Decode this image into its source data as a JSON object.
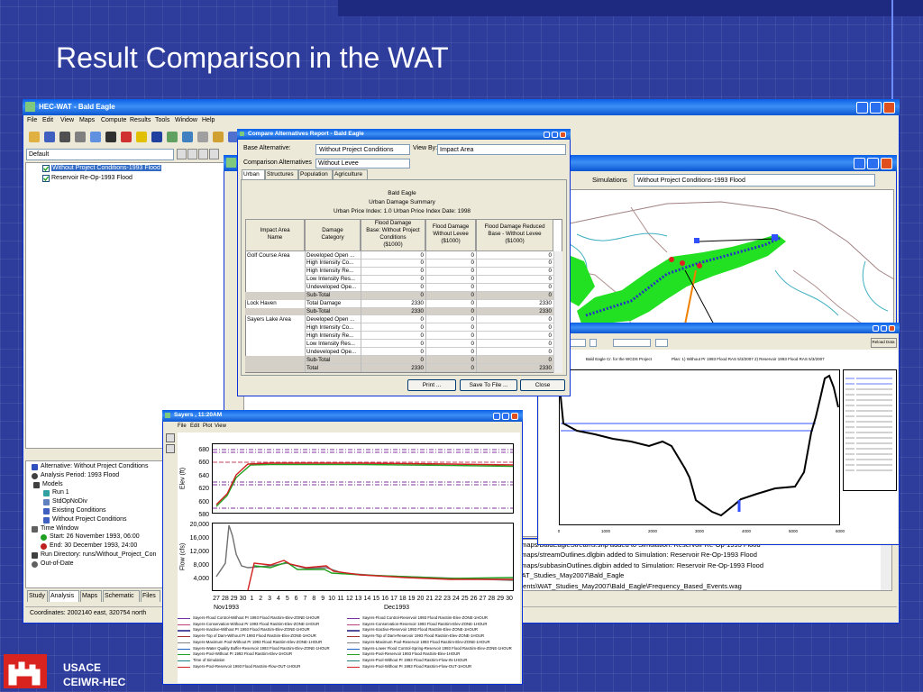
{
  "slide": {
    "title": "Result Comparison in the WAT",
    "org": "USACE",
    "office": "CEIWR-HEC"
  },
  "main_window": {
    "title": "HEC-WAT - Bald Eagle",
    "menu": [
      "File",
      "Edit",
      "View",
      "Maps",
      "Compute",
      "Results",
      "Tools",
      "Window",
      "Help"
    ],
    "dropdown": "Default",
    "tree": [
      "Without Project Conditions-1993 Flood",
      "Reservoir Re-Op-1993 Flood"
    ],
    "details": [
      "Alternative: Without Project Conditions",
      "Analysis Period: 1993 Flood",
      "Models",
      "Run 1",
      "StdOpNoDiv",
      "Existing Conditions",
      "Without Project Conditions",
      "Time Window",
      "Start: 26 November 1993,  06:00",
      "End: 30 December 1993,  24:00",
      "Run Directory: runs/Without_Project_Con",
      "Out-of-Date"
    ],
    "tabs": [
      "Study",
      "Analysis",
      "Maps",
      "Schematic",
      "Files"
    ],
    "status": "Coordinates: 2002140 east, 320754 north",
    "log": [
      "gle/maps/BaldEagleStreams.shp added to Simulation: Reservoir Re-Op-1993 Flood",
      "gle/maps/streamOutlines.dlgbin added to Simulation: Reservoir Re-Op-1993 Flood",
      "gle/maps/subbasinOutlines.dlgbin added to Simulation: Reservoir Re-Op-1993 Flood",
      "s\\WAT_Studies_May2007\\Bald_Eagle",
      "cuments\\WAT_Studies_May2007\\Bald_Eagle\\Frequency_Based_Events.wag"
    ]
  },
  "map_window": {
    "simulations_label": "Simulations",
    "simulation": "Without Project Conditions-1993 Flood"
  },
  "report": {
    "title": "Compare Alternatives Report - Bald Eagle",
    "base_label": "Base Alternative:",
    "base_value": "Without Project Conditions",
    "view_label": "View By:",
    "view_value": "Impact Area",
    "comparison_label": "Comparison Alternatives",
    "comparison_value": "Without Levee",
    "tabs": [
      "Urban",
      "Structures",
      "Population",
      "Agriculture"
    ],
    "header": [
      "Bald Eagle",
      "Urban Damage Summary",
      "Urban Price Index: 1.0     Urban Price Index Date: 1998"
    ],
    "table": {
      "columns": [
        [
          "Impact Area",
          "Name"
        ],
        [
          "Damage",
          "Category"
        ],
        [
          "Flood Damage",
          "Base: Without Project",
          "Conditions",
          "($1000)"
        ],
        [
          "Flood Damage",
          "Without Levee",
          "($1000)"
        ],
        [
          "Flood Damage Reduced",
          "Base - Without Levee",
          "($1000)"
        ]
      ],
      "rows": [
        {
          "area": "Golf Course Area",
          "category": "Developed Open ...",
          "values": [
            0,
            0,
            0
          ]
        },
        {
          "category": "High Intensity Co...",
          "values": [
            0,
            0,
            0
          ]
        },
        {
          "category": "High Intensity Re...",
          "values": [
            0,
            0,
            0
          ]
        },
        {
          "category": "Low Intensity Res...",
          "values": [
            0,
            0,
            0
          ]
        },
        {
          "category": "Undeveloped Ope...",
          "values": [
            0,
            0,
            0
          ]
        },
        {
          "category": "Sub-Total",
          "values": [
            0,
            0,
            0
          ]
        },
        {
          "area": "Lock Haven",
          "category": "Total Damage",
          "values": [
            2330,
            0,
            2330
          ]
        },
        {
          "category": "Sub-Total",
          "values": [
            2330,
            0,
            2330
          ]
        },
        {
          "area": "Sayers Lake Area",
          "category": "Developed Open ...",
          "values": [
            0,
            0,
            0
          ]
        },
        {
          "category": "High Intensity Co...",
          "values": [
            0,
            0,
            0
          ]
        },
        {
          "category": "High Intensity Re...",
          "values": [
            0,
            0,
            0
          ]
        },
        {
          "category": "Low Intensity Res...",
          "values": [
            0,
            0,
            0
          ]
        },
        {
          "category": "Undeveloped Ope...",
          "values": [
            0,
            0,
            0
          ]
        },
        {
          "category": "Sub-Total",
          "values": [
            0,
            0,
            0
          ]
        },
        {
          "category": "Total",
          "values": [
            2330,
            0,
            2330
          ]
        }
      ]
    },
    "buttons": [
      "Print ...",
      "Save To File ...",
      "Close"
    ]
  },
  "profile": {
    "title": "Bald Eagle Cr. for the WCDS Project",
    "plan": "Plan:   1) Without Pr 1993 Flood RAS   5/3/2007     2) Reservoir 1993 Flood RAS   5/3/2007",
    "reload": "Reload Data",
    "xticks": [
      0,
      1000,
      2000,
      3000,
      4000,
      5000,
      6000
    ]
  },
  "sayers": {
    "title": "Sayers , 11:20AM",
    "menu": [
      "File",
      "Edit",
      "Plot",
      "View"
    ],
    "elev_label": "Elev (ft)",
    "flow_label": "Flow (cfs)",
    "elev_ticks": [
      680,
      660,
      640,
      620,
      600,
      580
    ],
    "flow_ticks": [
      {
        "value": 20000,
        "label": "20,000"
      },
      {
        "value": 16000,
        "label": "16,000"
      },
      {
        "value": 12000,
        "label": "12,000"
      },
      {
        "value": 8000,
        "label": "8,000"
      },
      {
        "value": 4000,
        "label": "4,000"
      }
    ],
    "days": [
      "27",
      "28",
      "29",
      "30",
      "1",
      "2",
      "3",
      "4",
      "5",
      "6",
      "7",
      "8",
      "9",
      "10",
      "11",
      "12",
      "13",
      "14",
      "15",
      "16",
      "17",
      "18",
      "19",
      "20",
      "21",
      "22",
      "23",
      "24",
      "25",
      "26",
      "27",
      "28",
      "29",
      "30"
    ],
    "months": [
      "Nov1993",
      "Dec1993"
    ],
    "legend": [
      "Sayers-Flood Control-Without Pr 1993 Flood RasSim-Elev-ZONE-1HOUR",
      "Sayers-Conservation-Without Pr 1993 Flood RasSim-Elev-ZONE-1HOUR",
      "Sayers-Inactive-Without Pr 1993 Flood RasSim-Elev-ZONE-1HOUR",
      "Sayers-Top of Dam-Without Pr 1993 Flood RasSim-Elev-ZONE-1HOUR",
      "Sayers-Maximum Pool-Without Pr 1993 Flood RasSim-Elev-ZONE-1HOUR",
      "Sayers-Water Quality Buffer-Reservoir 1993 Flood RasSim-Elev-ZONE-1HOUR",
      "Sayers-Pool-Without Pr 1993 Flood RasSim-Elev-1HOUR",
      "Time of Simulation",
      "Sayers-Pool-Reservoir 1993 Flood RasSim-Flow-OUT-1HOUR",
      "Sayers-Flood Control-Reservoir 1993 Flood RasSim-Elev-ZONE-1HOUR",
      "Sayers-Conservation-Reservoir 1993 Flood RasSim-Elev-ZONE-1HOUR",
      "Sayers-Inactive-Reservoir 1993 Flood RasSim-Elev-ZONE-1HOUR",
      "Sayers-Top of Dam-Reservoir 1993 Flood RasSim-Elev-ZONE-1HOUR",
      "Sayers-Maximum Pool-Reservoir 1993 Flood RasSim-Elev-ZONE-1HOUR",
      "Sayers-Lower Flood Control-Spring-Reservoir 1993 Flood RasSim-Elev-ZONE-1HOUR",
      "Sayers-Pool-Reservoir 1993 Flood RasSim-Elev-1HOUR",
      "Sayers-Pool-Without Pr 1993 Flood RasSim-Flow-IN-1HOUR",
      "Sayers-Pool-Without Pr 1993 Flood RasSim-Flow-OUT-1HOUR"
    ]
  }
}
